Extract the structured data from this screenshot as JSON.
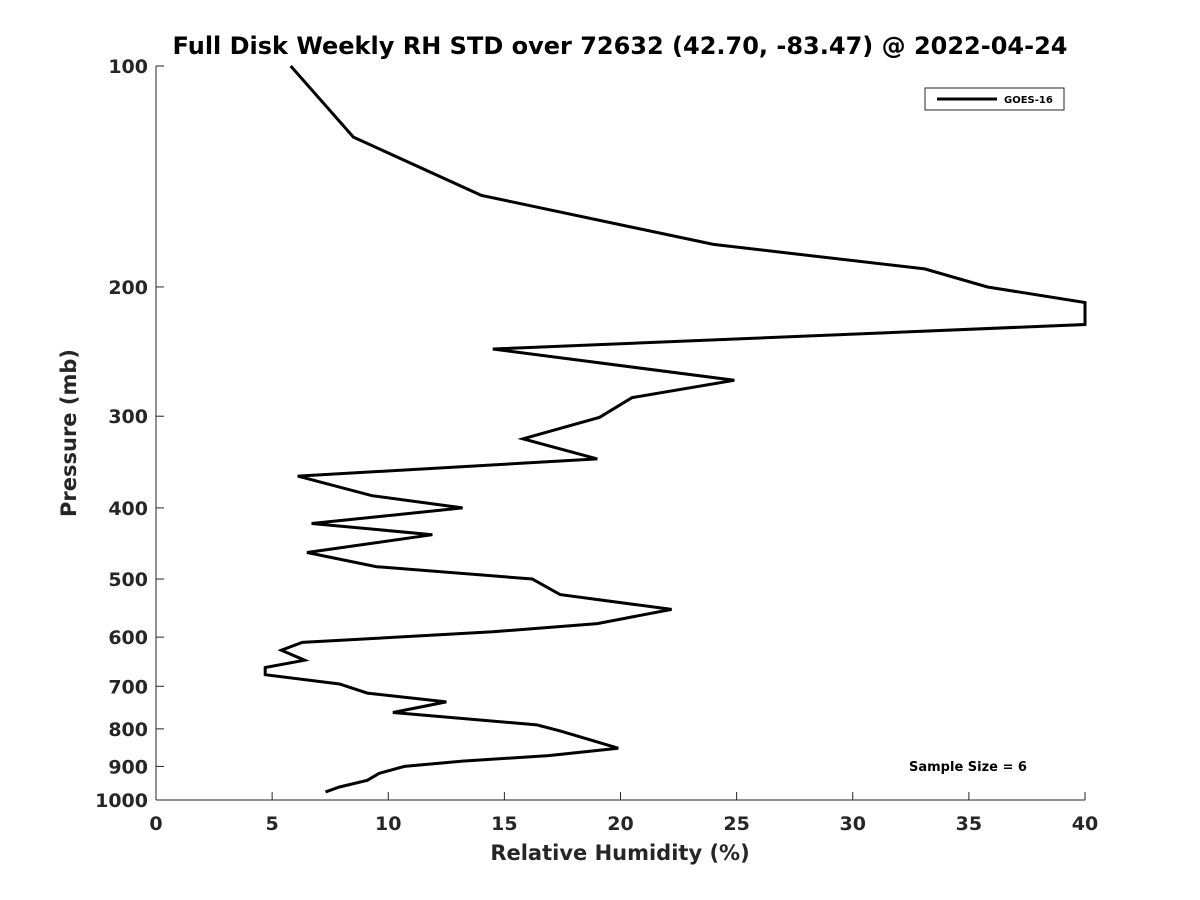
{
  "chart_data": {
    "type": "line",
    "title": "Full Disk Weekly RH STD over 72632 (42.70, -83.47) @ 2022-04-24",
    "xlabel": "Relative Humidity (%)",
    "ylabel": "Pressure (mb)",
    "xlim": [
      0,
      40
    ],
    "ylim": [
      1000,
      100
    ],
    "yscale": "log",
    "reversed_y": true,
    "x_ticks": [
      0,
      5,
      10,
      15,
      20,
      25,
      30,
      35,
      40
    ],
    "y_ticks": [
      100,
      200,
      300,
      400,
      500,
      600,
      700,
      800,
      900,
      1000
    ],
    "grid": false,
    "legend_position": "top-right",
    "series": [
      {
        "name": "GOES-16",
        "color": "#000000",
        "points": [
          [
            5.8,
            100
          ],
          [
            8.5,
            125
          ],
          [
            14.0,
            150
          ],
          [
            24.0,
            175
          ],
          [
            33.1,
            189
          ],
          [
            35.8,
            200
          ],
          [
            40.0,
            210
          ],
          [
            40.0,
            225
          ],
          [
            14.5,
            243
          ],
          [
            24.9,
            268
          ],
          [
            20.5,
            283
          ],
          [
            19.1,
            301
          ],
          [
            15.8,
            322
          ],
          [
            19.0,
            343
          ],
          [
            6.1,
            362
          ],
          [
            9.3,
            385
          ],
          [
            13.2,
            400
          ],
          [
            6.7,
            420
          ],
          [
            11.9,
            435
          ],
          [
            6.5,
            460
          ],
          [
            9.5,
            481
          ],
          [
            16.2,
            500
          ],
          [
            17.4,
            525
          ],
          [
            22.2,
            550
          ],
          [
            19.0,
            575
          ],
          [
            14.5,
            590
          ],
          [
            6.3,
            610
          ],
          [
            5.4,
            625
          ],
          [
            6.4,
            645
          ],
          [
            4.7,
            660
          ],
          [
            4.7,
            675
          ],
          [
            7.9,
            695
          ],
          [
            9.1,
            715
          ],
          [
            12.5,
            735
          ],
          [
            10.2,
            760
          ],
          [
            16.4,
            790
          ],
          [
            17.4,
            805
          ],
          [
            18.8,
            830
          ],
          [
            19.9,
            850
          ],
          [
            16.9,
            870
          ],
          [
            13.2,
            885
          ],
          [
            10.7,
            900
          ],
          [
            9.6,
            920
          ],
          [
            9.1,
            940
          ],
          [
            7.9,
            960
          ],
          [
            7.3,
            975
          ]
        ]
      }
    ],
    "annotation": "Sample Size = 6"
  }
}
